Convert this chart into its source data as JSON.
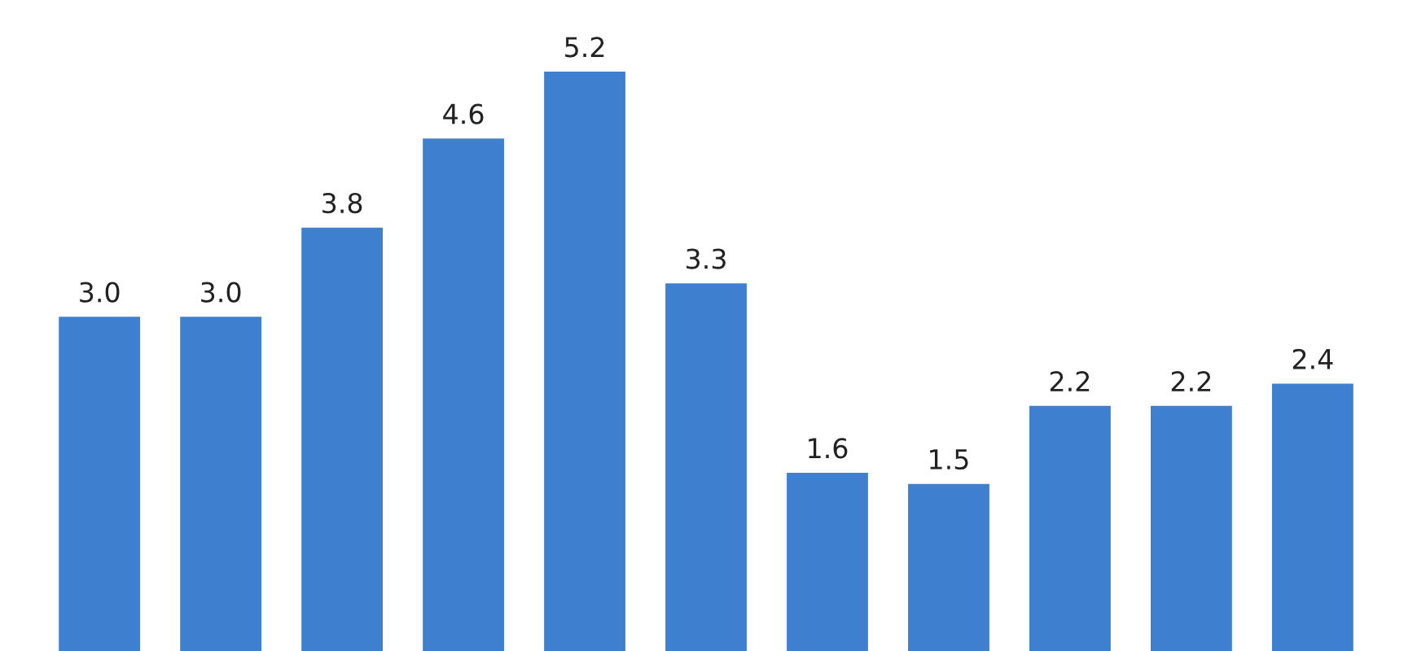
{
  "chart_data": {
    "type": "bar",
    "categories": [
      null,
      null,
      null,
      null,
      null,
      null,
      null,
      null,
      null,
      null,
      null
    ],
    "values": [
      3.0,
      3.0,
      3.8,
      4.6,
      5.2,
      3.3,
      1.6,
      1.5,
      2.2,
      2.2,
      2.4
    ],
    "value_labels": [
      "3.0",
      "3.0",
      "3.8",
      "4.6",
      "5.2",
      "3.3",
      "1.6",
      "1.5",
      "2.2",
      "2.2",
      "2.4"
    ],
    "color": "#3f7fcf"
  }
}
